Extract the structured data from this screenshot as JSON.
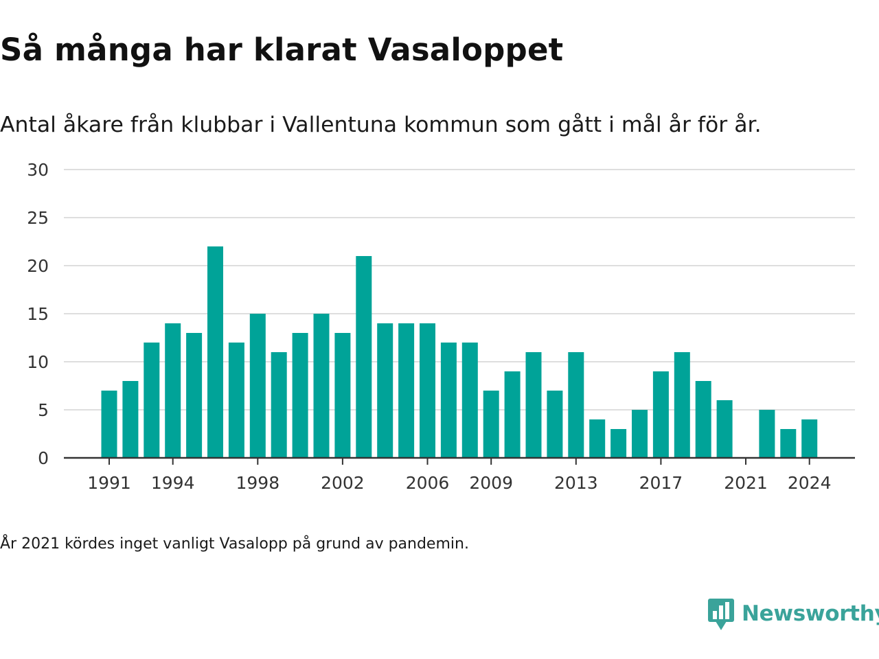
{
  "title": "Så många har klarat Vasaloppet",
  "subtitle": "Antal åkare från klubbar i Vallentuna kommun som gått i mål år för år.",
  "note": "År 2021 kördes inget vanligt Vasalopp på grund av pandemin.",
  "brand": {
    "name": "Newsworthy",
    "color": "#3aa39a"
  },
  "colors": {
    "bar": "#00a398",
    "grid": "#dedede",
    "axis": "#333333"
  },
  "chart_data": {
    "type": "bar",
    "title": "Så många har klarat Vasaloppet",
    "subtitle": "Antal åkare från klubbar i Vallentuna kommun som gått i mål år för år.",
    "x": [
      1991,
      1992,
      1993,
      1994,
      1995,
      1996,
      1997,
      1998,
      1999,
      2000,
      2001,
      2002,
      2003,
      2004,
      2005,
      2006,
      2007,
      2008,
      2009,
      2010,
      2011,
      2012,
      2013,
      2014,
      2015,
      2016,
      2017,
      2018,
      2019,
      2020,
      2021,
      2022,
      2023,
      2024
    ],
    "values": [
      7,
      8,
      12,
      14,
      13,
      22,
      12,
      15,
      11,
      13,
      15,
      13,
      21,
      14,
      14,
      14,
      12,
      12,
      7,
      9,
      11,
      7,
      11,
      4,
      3,
      5,
      9,
      11,
      8,
      6,
      0,
      5,
      3,
      4
    ],
    "x_ticks": [
      1991,
      1994,
      1998,
      2002,
      2006,
      2009,
      2013,
      2017,
      2021,
      2024
    ],
    "y_ticks": [
      0,
      5,
      10,
      15,
      20,
      25,
      30
    ],
    "ylim": [
      0,
      30
    ],
    "grid": true,
    "legend": "none"
  }
}
